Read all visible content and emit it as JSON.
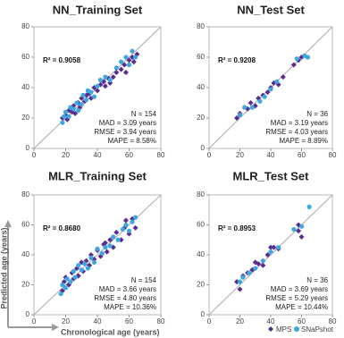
{
  "ylabel": "Predicted age (years)",
  "xlabel": "Chronological age (years)",
  "chart_data": [
    {
      "type": "scatter",
      "title": "NN_Training Set",
      "r2": "R² = 0.9058",
      "stats": [
        "N = 154",
        "MAD = 3.09 years",
        "RMSE = 3.94 years",
        "MAPE = 8.58%"
      ],
      "xlim": [
        0,
        80
      ],
      "ylim": [
        0,
        80
      ],
      "xticks": [
        0,
        20,
        40,
        60,
        80
      ],
      "yticks": [
        0,
        20,
        40,
        60,
        80
      ],
      "series": [
        {
          "name": "MPS",
          "color": "#5b2c8f",
          "marker": "diamond",
          "x": [
            18,
            20,
            21,
            22,
            24,
            25,
            26,
            28,
            29,
            30,
            32,
            33,
            35,
            36,
            38,
            40,
            42,
            44,
            45,
            47,
            50,
            52,
            55,
            57,
            60,
            62,
            63,
            65,
            58,
            48
          ],
          "values": [
            20,
            22,
            19,
            25,
            24,
            28,
            23,
            30,
            27,
            33,
            31,
            35,
            36,
            33,
            40,
            38,
            42,
            44,
            41,
            46,
            47,
            50,
            52,
            55,
            58,
            60,
            57,
            62,
            50,
            43
          ]
        },
        {
          "name": "SNaPshot",
          "color": "#3ea7df",
          "marker": "circle",
          "x": [
            18,
            19,
            20,
            22,
            23,
            25,
            27,
            28,
            30,
            31,
            33,
            34,
            36,
            38,
            40,
            42,
            45,
            48,
            52,
            55,
            58,
            60,
            62,
            64
          ],
          "values": [
            17,
            21,
            24,
            21,
            27,
            26,
            30,
            25,
            29,
            35,
            32,
            38,
            37,
            34,
            41,
            45,
            47,
            45,
            53,
            57,
            60,
            55,
            64,
            60
          ]
        }
      ]
    },
    {
      "type": "scatter",
      "title": "NN_Test Set",
      "r2": "R² = 0.9208",
      "stats": [
        "N = 36",
        "MAD = 3.19 years",
        "RMSE = 4.03 years",
        "MAPE = 8.89%"
      ],
      "xlim": [
        0,
        80
      ],
      "ylim": [
        0,
        80
      ],
      "xticks": [
        0,
        20,
        40,
        60,
        80
      ],
      "yticks": [
        0,
        20,
        40,
        60,
        80
      ],
      "series": [
        {
          "name": "MPS",
          "color": "#5b2c8f",
          "marker": "diamond",
          "x": [
            18,
            20,
            25,
            30,
            32,
            35,
            38,
            40,
            42,
            45,
            48,
            55,
            58,
            60,
            27
          ],
          "values": [
            20,
            23,
            26,
            28,
            33,
            35,
            37,
            40,
            43,
            42,
            47,
            55,
            58,
            60,
            30
          ]
        },
        {
          "name": "SNaPshot",
          "color": "#3ea7df",
          "marker": "circle",
          "x": [
            20,
            23,
            28,
            33,
            36,
            40,
            44,
            57,
            62,
            64
          ],
          "values": [
            22,
            27,
            27,
            31,
            34,
            39,
            44,
            59,
            61,
            60
          ]
        }
      ]
    },
    {
      "type": "scatter",
      "title": "MLR_Training Set",
      "r2": "R² = 0.8680",
      "stats": [
        "N = 154",
        "MAD = 3.66 years",
        "RMSE = 4.80 years",
        "MAPE = 10.36%"
      ],
      "xlim": [
        0,
        80
      ],
      "ylim": [
        0,
        80
      ],
      "xticks": [
        0,
        20,
        40,
        60,
        80
      ],
      "yticks": [
        0,
        20,
        40,
        60,
        80
      ],
      "series": [
        {
          "name": "MPS",
          "color": "#5b2c8f",
          "marker": "diamond",
          "x": [
            18,
            19,
            20,
            22,
            24,
            25,
            27,
            28,
            30,
            31,
            33,
            35,
            36,
            38,
            40,
            42,
            44,
            46,
            48,
            50,
            52,
            55,
            57,
            60,
            62,
            64,
            58,
            45
          ],
          "values": [
            16,
            22,
            25,
            20,
            28,
            24,
            31,
            26,
            35,
            29,
            36,
            33,
            40,
            37,
            43,
            39,
            47,
            42,
            50,
            45,
            55,
            50,
            58,
            54,
            64,
            58,
            63,
            48
          ]
        },
        {
          "name": "SNaPshot",
          "color": "#3ea7df",
          "marker": "circle",
          "x": [
            17,
            18,
            20,
            21,
            23,
            25,
            26,
            28,
            30,
            32,
            34,
            36,
            38,
            40,
            43,
            45,
            48,
            50,
            53,
            56,
            58,
            60,
            62,
            64
          ],
          "values": [
            14,
            20,
            18,
            24,
            22,
            29,
            25,
            33,
            30,
            34,
            31,
            38,
            35,
            44,
            41,
            45,
            46,
            52,
            50,
            57,
            60,
            56,
            62,
            65
          ]
        }
      ]
    },
    {
      "type": "scatter",
      "title": "MLR_Test Set",
      "r2": "R² = 0.8953",
      "stats": [
        "N = 36",
        "MAD = 3.69 years",
        "RMSE = 5.29 years",
        "MAPE = 10.44%"
      ],
      "xlim": [
        0,
        80
      ],
      "ylim": [
        0,
        80
      ],
      "xticks": [
        0,
        20,
        40,
        60,
        80
      ],
      "yticks": [
        0,
        20,
        40,
        60,
        80
      ],
      "series": [
        {
          "name": "MPS",
          "color": "#5b2c8f",
          "marker": "diamond",
          "x": [
            18,
            20,
            22,
            25,
            28,
            32,
            35,
            38,
            40,
            42,
            45,
            58,
            60,
            58,
            30
          ],
          "values": [
            22,
            17,
            26,
            28,
            30,
            34,
            33,
            40,
            45,
            45,
            44,
            60,
            52,
            56,
            35
          ]
        },
        {
          "name": "SNaPshot",
          "color": "#3ea7df",
          "marker": "circle",
          "x": [
            20,
            22,
            26,
            30,
            35,
            40,
            45,
            55,
            60,
            65
          ],
          "values": [
            22,
            25,
            28,
            31,
            36,
            42,
            45,
            57,
            59,
            72
          ]
        }
      ]
    }
  ]
}
